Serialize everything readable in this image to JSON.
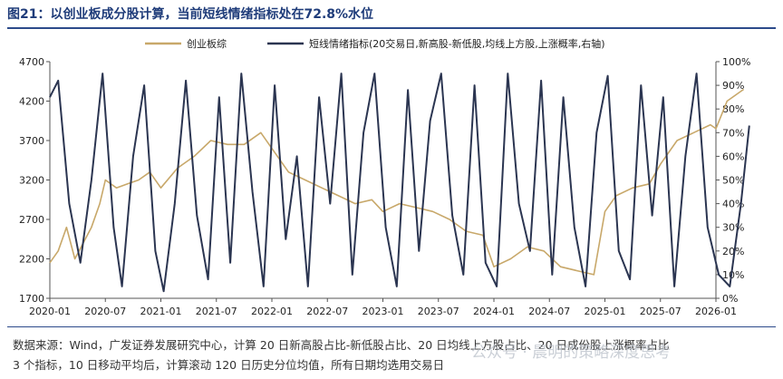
{
  "title": "图21：以创业板成分股计算，当前短线情绪指标处在72.8%水位",
  "source_line1": "数据来源：Wind，广发证券发展研究中心，计算 20 日新高股占比-新低股占比、20 日均线上方股占比、20 日成份股上涨概率占比",
  "source_line2": "3 个指标，10 日移动平均后，计算滚动 120 日历史分位均值，所有日期均选用交易日",
  "watermark": "公众号 · 晨明的策略深度思考",
  "chart_data": {
    "type": "line",
    "title": "",
    "x_labels": [
      "2020-01",
      "2020-07",
      "2021-01",
      "2021-07",
      "2022-01",
      "2022-07",
      "2023-01",
      "2023-07",
      "2024-01",
      "2024-07",
      "2025-01",
      "2025-07",
      "2026-01"
    ],
    "y_left": {
      "min": 1700,
      "max": 4700,
      "ticks": [
        1700,
        2200,
        2700,
        3200,
        3700,
        4200,
        4700
      ]
    },
    "y_right": {
      "min": 0,
      "max": 100,
      "ticks": [
        "0%",
        "10%",
        "20%",
        "30%",
        "40%",
        "50%",
        "60%",
        "70%",
        "80%",
        "90%",
        "100%"
      ]
    },
    "legend_position": "top",
    "colors": {
      "index": "#c8a86a",
      "sentiment": "#2b3551"
    },
    "series": [
      {
        "name": "创业板综",
        "axis": "left",
        "x": [
          0,
          0.15,
          0.3,
          0.45,
          0.6,
          0.75,
          0.9,
          1,
          1.2,
          1.4,
          1.6,
          1.8,
          2,
          2.3,
          2.6,
          2.9,
          3.2,
          3.5,
          3.8,
          4,
          4.3,
          4.6,
          4.9,
          5.2,
          5.5,
          5.8,
          6,
          6.3,
          6.6,
          6.9,
          7.2,
          7.5,
          7.8,
          8,
          8.3,
          8.6,
          8.9,
          9.2,
          9.5,
          9.8,
          10,
          10.2,
          10.5,
          10.8,
          11,
          11.3,
          11.6,
          11.9,
          12,
          12.2,
          12.5
        ],
        "values": [
          2150,
          2300,
          2600,
          2200,
          2400,
          2600,
          2900,
          3200,
          3100,
          3150,
          3200,
          3300,
          3100,
          3350,
          3500,
          3700,
          3650,
          3650,
          3800,
          3600,
          3300,
          3200,
          3100,
          3000,
          2900,
          2950,
          2800,
          2900,
          2850,
          2800,
          2700,
          2550,
          2500,
          2100,
          2200,
          2350,
          2300,
          2100,
          2050,
          2000,
          2800,
          3000,
          3100,
          3150,
          3400,
          3700,
          3800,
          3900,
          3850,
          4200,
          4350
        ]
      },
      {
        "name": "短线情绪指标(20交易日,新高股-新低股,均线上方股,上涨概率,右轴)",
        "axis": "right",
        "x": [
          0,
          0.15,
          0.35,
          0.55,
          0.75,
          0.95,
          1.15,
          1.3,
          1.5,
          1.7,
          1.9,
          2.05,
          2.25,
          2.45,
          2.65,
          2.85,
          3.05,
          3.25,
          3.45,
          3.65,
          3.85,
          4.05,
          4.25,
          4.45,
          4.65,
          4.85,
          5.05,
          5.25,
          5.45,
          5.65,
          5.85,
          6.05,
          6.25,
          6.45,
          6.65,
          6.85,
          7.05,
          7.25,
          7.45,
          7.65,
          7.85,
          8.05,
          8.25,
          8.45,
          8.65,
          8.85,
          9.05,
          9.25,
          9.45,
          9.65,
          9.85,
          10.05,
          10.25,
          10.45,
          10.65,
          10.85,
          11.05,
          11.25,
          11.45,
          11.65,
          11.85,
          12.05,
          12.25,
          12.45,
          12.6
        ],
        "values": [
          85,
          92,
          40,
          15,
          50,
          95,
          30,
          5,
          60,
          90,
          20,
          3,
          40,
          92,
          35,
          8,
          85,
          15,
          95,
          45,
          5,
          90,
          25,
          60,
          5,
          85,
          40,
          95,
          10,
          70,
          95,
          30,
          5,
          88,
          20,
          75,
          95,
          35,
          10,
          90,
          15,
          5,
          95,
          40,
          20,
          92,
          10,
          85,
          30,
          5,
          70,
          94,
          20,
          8,
          90,
          35,
          85,
          5,
          60,
          95,
          30,
          10,
          5,
          40,
          73
        ]
      }
    ]
  }
}
